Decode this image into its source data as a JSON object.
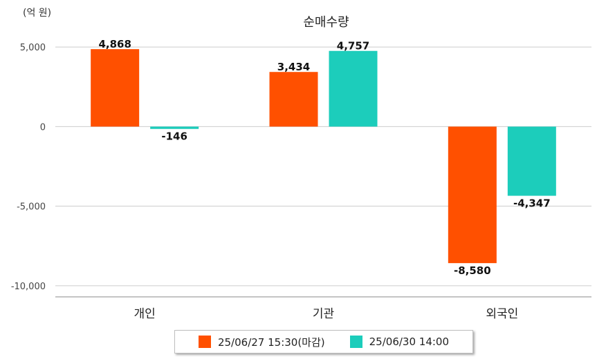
{
  "chart_data": {
    "type": "bar",
    "title": "순매수량",
    "unit_label": "(억 원)",
    "categories": [
      "개인",
      "기관",
      "외국인"
    ],
    "series": [
      {
        "name": "25/06/27 15:30(마감)",
        "color": "#ff5000",
        "values": [
          4868,
          3434,
          -8580
        ],
        "labels": [
          "4,868",
          "3,434",
          "-8,580"
        ]
      },
      {
        "name": "25/06/30 14:00",
        "color": "#1ccdbb",
        "values": [
          -146,
          4757,
          -4347
        ],
        "labels": [
          "-146",
          "4,757",
          "-4,347"
        ]
      }
    ],
    "ylim": [
      -10700,
      5700
    ],
    "yticks": [
      5000,
      0,
      -5000,
      -10000
    ],
    "ytick_labels": [
      "5,000",
      "0",
      "-5,000",
      "-10,000"
    ],
    "grid": true,
    "legend_position": "bottom"
  }
}
